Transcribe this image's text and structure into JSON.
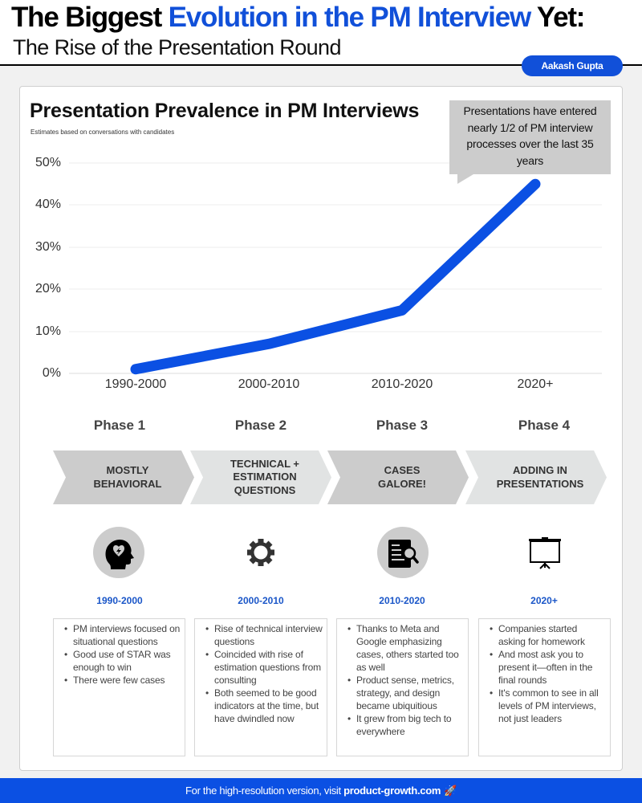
{
  "header": {
    "title_part1": "The Biggest ",
    "title_accent": "Evolution in the PM Interview",
    "title_part2": " Yet:",
    "subtitle": "The Rise of the Presentation Round",
    "author": "Aakash Gupta"
  },
  "chart": {
    "title": "Presentation Prevalence in PM Interviews",
    "subtitle": "Estimates based on conversations with candidates",
    "callout": "Presentations have entered nearly 1/2 of PM interview processes over the last 35 years"
  },
  "chart_data": {
    "type": "line",
    "title": "Presentation Prevalence in PM Interviews",
    "subtitle": "Estimates based on conversations with candidates",
    "categories": [
      "1990-2000",
      "2000-2010",
      "2010-2020",
      "2020+"
    ],
    "series": [
      {
        "name": "Presentation prevalence",
        "values": [
          1,
          7,
          15,
          45
        ],
        "color": "#0b50e3"
      }
    ],
    "y_ticks": [
      "0%",
      "10%",
      "20%",
      "30%",
      "40%",
      "50%"
    ],
    "ylim": [
      0,
      50
    ],
    "xlabel": "",
    "ylabel": "",
    "grid": true,
    "legend": "none",
    "annotation": "Presentations have entered nearly 1/2 of PM interview processes over the last 35 years"
  },
  "phases": [
    {
      "phase": "Phase 1",
      "label": "MOSTLY BEHAVIORAL",
      "label_lines": [
        "MOSTLY",
        "BEHAVIORAL"
      ],
      "icon": "head-heart-icon",
      "period": "1990-2000",
      "bullets": [
        "PM interviews focused on situational questions",
        "Good use of STAR was enough to win",
        "There were few cases"
      ]
    },
    {
      "phase": "Phase 2",
      "label": "TECHNICAL + ESTIMATION QUESTIONS",
      "label_lines": [
        "TECHNICAL +",
        "ESTIMATION",
        "QUESTIONS"
      ],
      "icon": "gear-icon",
      "period": "2000-2010",
      "bullets": [
        "Rise of technical interview questions",
        "Coincided with rise of estimation questions from consulting",
        "Both seemed to be good indicators at the time, but have dwindled now"
      ]
    },
    {
      "phase": "Phase 3",
      "label": "CASES GALORE!",
      "label_lines": [
        "CASES",
        "GALORE!"
      ],
      "icon": "document-search-icon",
      "period": "2010-2020",
      "bullets": [
        "Thanks to Meta and Google emphasizing cases, others started too as well",
        "Product sense, metrics, strategy, and design became ubiquitious",
        "It grew from big tech to everywhere"
      ]
    },
    {
      "phase": "Phase 4",
      "label": "ADDING IN PRESENTATIONS",
      "label_lines": [
        "ADDING IN",
        "PRESENTATIONS"
      ],
      "icon": "projector-screen-icon",
      "period": "2020+",
      "bullets": [
        "Companies started asking for homework",
        "And most ask you to present it—often in the final rounds",
        "It's common to see in all levels of PM interviews, not just leaders"
      ]
    }
  ],
  "footer": {
    "text": "For the high-resolution version, visit ",
    "link": "product-growth.com",
    "icon": "rocket-icon"
  },
  "colors": {
    "accent": "#1150d9",
    "line": "#0b50e3",
    "footer_bg": "#0b50e3",
    "period_text": "#1a56c8",
    "chevron_dark": "#cccccc",
    "chevron_light": "#e1e3e3",
    "callout_bg": "#cccccc"
  }
}
